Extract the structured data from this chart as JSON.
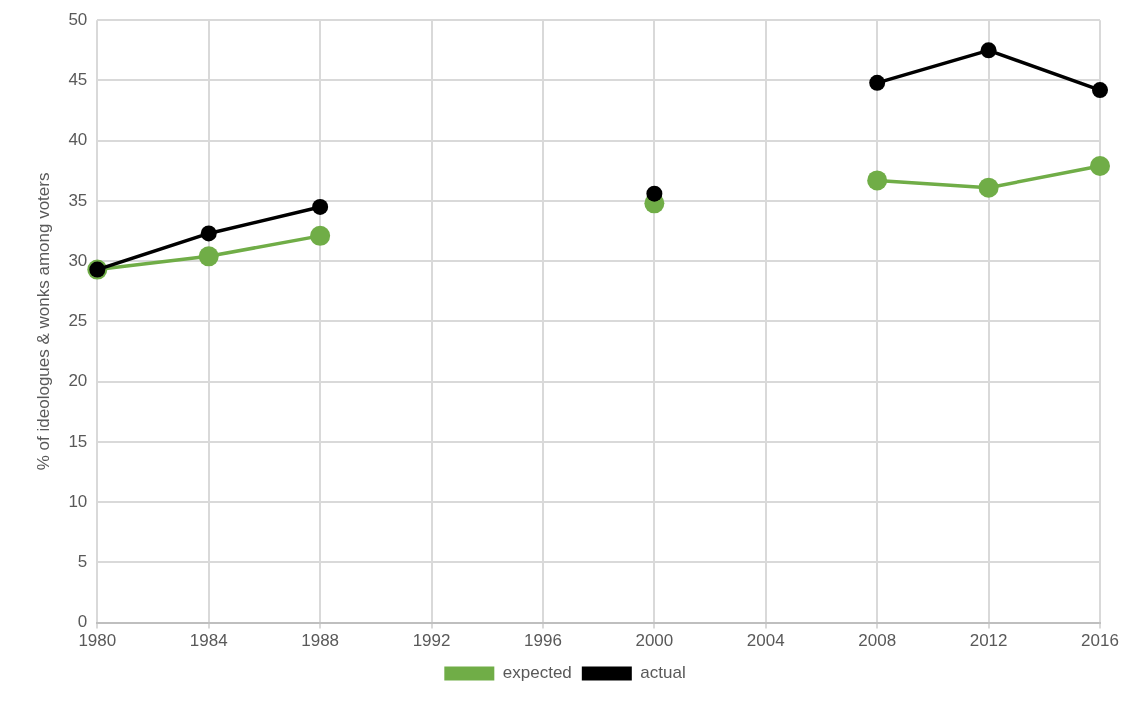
{
  "chart_data": {
    "type": "line",
    "ylabel": "% of ideologues & wonks among voters",
    "x": [
      1980,
      1984,
      1988,
      1992,
      1996,
      2000,
      2004,
      2008,
      2012,
      2016
    ],
    "series": [
      {
        "name": "expected",
        "color": "#70ad47",
        "values": [
          29.3,
          30.4,
          32.1,
          null,
          null,
          34.8,
          null,
          36.7,
          36.1,
          37.9
        ]
      },
      {
        "name": "actual",
        "color": "#000000",
        "values": [
          29.3,
          32.3,
          34.5,
          null,
          null,
          35.6,
          null,
          44.8,
          47.5,
          44.2
        ]
      }
    ],
    "xlim": [
      1980,
      2016
    ],
    "xticks": [
      1980,
      1984,
      1988,
      1992,
      1996,
      2000,
      2004,
      2008,
      2012,
      2016
    ],
    "ylim": [
      0,
      50
    ],
    "yticks": [
      0,
      5,
      10,
      15,
      20,
      25,
      30,
      35,
      40,
      45,
      50
    ],
    "grid": true,
    "legend": "bottom",
    "marker": "circle",
    "line_style": "solid"
  }
}
